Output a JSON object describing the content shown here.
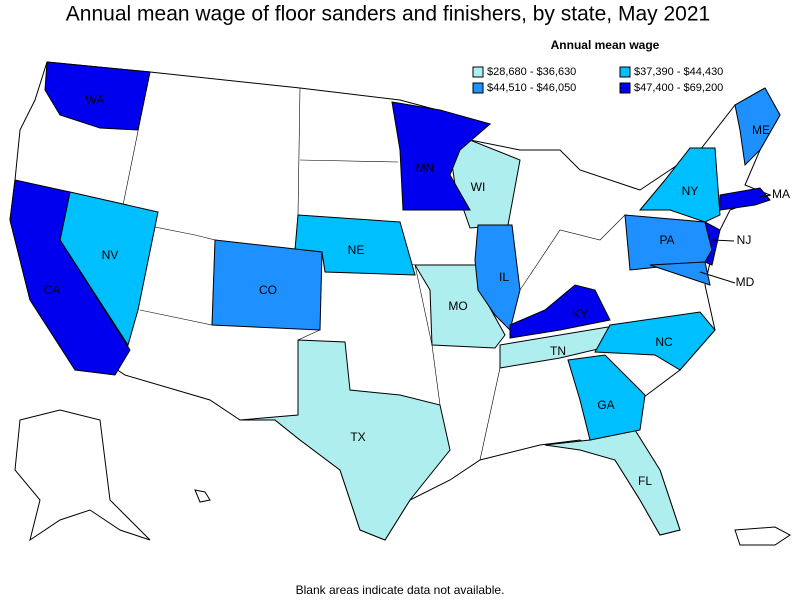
{
  "title": "Annual mean wage of floor sanders and finishers, by state, May 2021",
  "legend": {
    "title": "Annual mean wage",
    "items": [
      {
        "label": "$28,680 - $36,630",
        "color": "#afeeee",
        "states": [
          "WI",
          "MO",
          "TN",
          "TX",
          "FL"
        ]
      },
      {
        "label": "$37,390 - $44,430",
        "color": "#00bfff",
        "states": [
          "NV",
          "NE",
          "NY",
          "NC",
          "GA"
        ]
      },
      {
        "label": "$44,510 - $46,050",
        "color": "#1e90ff",
        "states": [
          "CO",
          "IL",
          "PA",
          "ME",
          "MD"
        ]
      },
      {
        "label": "$47,400 - $69,200",
        "color": "#0000ee",
        "states": [
          "WA",
          "CA",
          "MN",
          "KY",
          "NJ",
          "MA"
        ]
      }
    ]
  },
  "footnote": "Blank areas indicate data not available."
}
